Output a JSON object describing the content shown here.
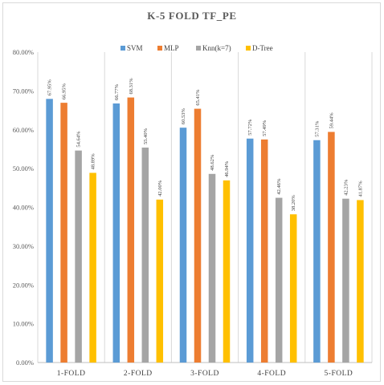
{
  "chart_data": {
    "type": "bar",
    "title": "K-5 FOLD TF_PE",
    "categories": [
      "1-FOLD",
      "2-FOLD",
      "3-FOLD",
      "4-FOLD",
      "5-FOLD"
    ],
    "series": [
      {
        "name": "SVM",
        "color": "#5B9BD5",
        "values": [
          67.95,
          66.77,
          60.53,
          57.72,
          57.31
        ],
        "labels": [
          "67.95%",
          "66.77%",
          "60.53%",
          "57.72%",
          "57.31%"
        ]
      },
      {
        "name": "MLP",
        "color": "#ED7D31",
        "values": [
          66.95,
          68.31,
          65.41,
          57.49,
          59.44
        ],
        "labels": [
          "66.95%",
          "68.31%",
          "65.41%",
          "57.49%",
          "59.44%"
        ]
      },
      {
        "name": "Knn(k=7)",
        "color": "#A5A5A5",
        "values": [
          54.64,
          55.4,
          48.62,
          42.46,
          42.23
        ],
        "labels": [
          "54.64%",
          "55.40%",
          "48.62%",
          "42.46%",
          "42.23%"
        ]
      },
      {
        "name": "D-Tree",
        "color": "#FFC000",
        "values": [
          48.89,
          42.0,
          46.94,
          38.2,
          41.87
        ],
        "labels": [
          "48.89%",
          "42.00%",
          "46.94%",
          "38.20%",
          "41.87%"
        ]
      }
    ],
    "ylim": [
      0,
      80
    ],
    "yticks": [
      "0.00%",
      "10.00%",
      "20.00%",
      "30.00%",
      "40.00%",
      "50.00%",
      "60.00%",
      "70.00%",
      "80.00%"
    ],
    "legend_position": "top",
    "grid": "vertical category separators"
  }
}
